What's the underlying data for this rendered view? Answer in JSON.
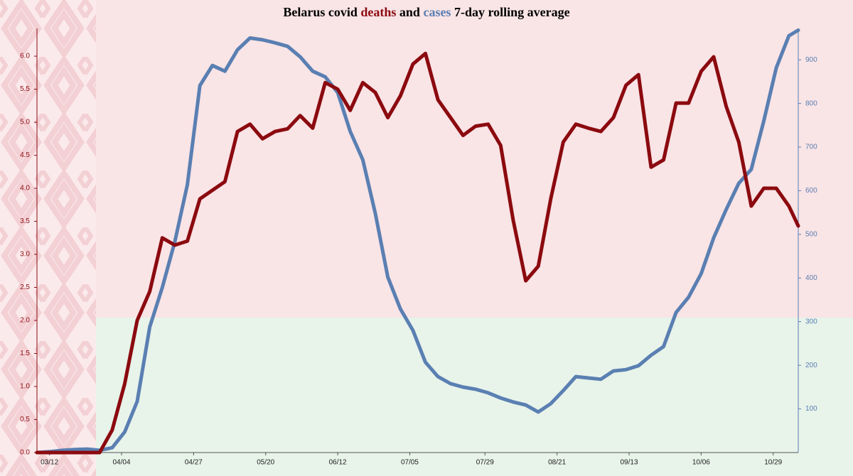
{
  "chart_data": {
    "type": "line",
    "title_prefix": "Belarus covid",
    "title_joiner": "and",
    "title_suffix": "7-day rolling average",
    "x": [
      "03/08",
      "03/12",
      "03/16",
      "03/20",
      "03/24",
      "03/28",
      "04/01",
      "04/05",
      "04/09",
      "04/13",
      "04/17",
      "04/21",
      "04/25",
      "04/29",
      "05/03",
      "05/07",
      "05/11",
      "05/15",
      "05/19",
      "05/23",
      "05/27",
      "05/31",
      "06/04",
      "06/08",
      "06/12",
      "06/16",
      "06/20",
      "06/24",
      "06/28",
      "07/02",
      "07/06",
      "07/10",
      "07/14",
      "07/18",
      "07/22",
      "07/26",
      "07/30",
      "08/03",
      "08/07",
      "08/11",
      "08/15",
      "08/19",
      "08/23",
      "08/27",
      "08/31",
      "09/04",
      "09/08",
      "09/12",
      "09/16",
      "09/20",
      "09/24",
      "09/28",
      "10/02",
      "10/06",
      "10/10",
      "10/14",
      "10/18",
      "10/22",
      "10/26",
      "10/30",
      "11/03",
      "11/06"
    ],
    "xticks": [
      "03/12",
      "04/04",
      "04/27",
      "05/20",
      "06/12",
      "07/05",
      "07/29",
      "08/21",
      "09/13",
      "10/06",
      "10/29"
    ],
    "series": [
      {
        "name": "deaths",
        "color": "#8b0a0f",
        "axis": "y",
        "values": [
          0,
          0,
          0,
          0,
          0,
          0,
          0.34,
          1.04,
          2.0,
          2.44,
          3.25,
          3.14,
          3.2,
          3.84,
          3.97,
          4.1,
          4.86,
          4.97,
          4.75,
          4.86,
          4.9,
          5.1,
          4.91,
          5.6,
          5.5,
          5.18,
          5.6,
          5.45,
          5.07,
          5.4,
          5.88,
          6.04,
          5.34,
          5.07,
          4.8,
          4.94,
          4.97,
          4.65,
          3.52,
          2.6,
          2.82,
          3.84,
          4.7,
          4.97,
          4.91,
          4.86,
          5.07,
          5.56,
          5.72,
          4.32,
          4.43,
          5.29,
          5.29,
          5.77,
          5.99,
          5.24,
          4.7,
          3.73,
          4.0,
          4.0,
          3.73,
          3.43
        ]
      },
      {
        "name": "cases",
        "color": "#5a7fb2",
        "axis": "y2",
        "values": [
          0,
          2,
          5,
          7,
          8,
          5,
          11,
          47,
          117,
          288,
          378,
          483,
          614,
          841,
          887,
          874,
          923,
          950,
          946,
          939,
          931,
          907,
          874,
          861,
          825,
          736,
          671,
          548,
          402,
          329,
          280,
          207,
          174,
          158,
          150,
          145,
          137,
          125,
          116,
          109,
          93,
          112,
          142,
          174,
          171,
          168,
          187,
          190,
          199,
          223,
          243,
          321,
          356,
          410,
          492,
          557,
          617,
          649,
          760,
          882,
          955,
          968
        ]
      }
    ],
    "ylim": [
      0,
      6.42
    ],
    "yticks": [
      {
        "value": 0,
        "label": "0.0"
      },
      0.5,
      {
        "value": 1,
        "label": "1.0"
      },
      1.5,
      {
        "value": 2,
        "label": "2.0"
      },
      2.5,
      {
        "value": 3,
        "label": "3.0"
      },
      3.5,
      {
        "value": 4,
        "label": "4.0"
      },
      4.5,
      {
        "value": 5,
        "label": "5.0"
      },
      5.5,
      {
        "value": 6,
        "label": "6.0"
      }
    ],
    "y2lim": [
      0,
      972
    ],
    "y2ticks": [
      100,
      200,
      300,
      400,
      500,
      600,
      700,
      800,
      900
    ]
  }
}
